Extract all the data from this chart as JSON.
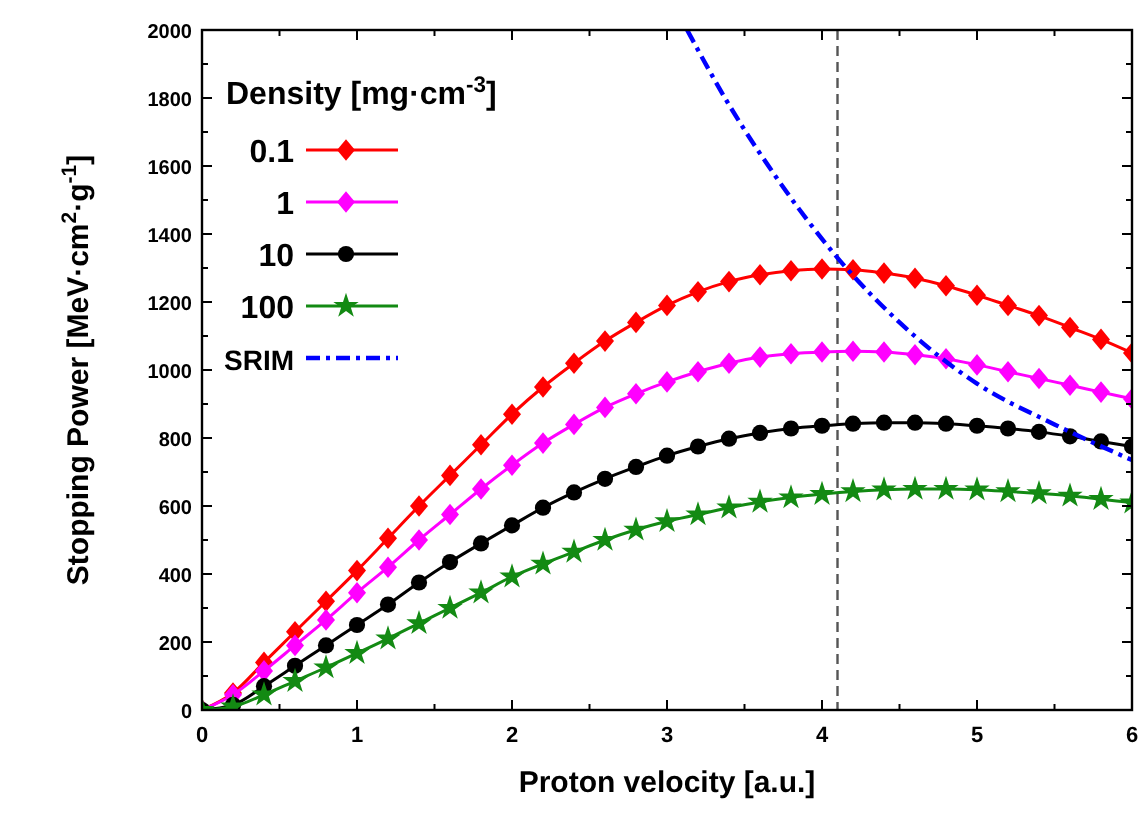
{
  "chart_data": {
    "type": "line",
    "xlabel": "Proton velocity [a.u.]",
    "ylabel": "Stopping Power [MeV·cm$^{2}$·g$^{-1}$]",
    "legend_title": "Density [mg·cm$^{-3}$]",
    "legend": "top left",
    "xlim": [
      0,
      6
    ],
    "xticks": [
      0,
      1,
      2,
      3,
      4,
      5,
      6
    ],
    "ylim": [
      0,
      2000
    ],
    "yticks": [
      0,
      200,
      400,
      600,
      800,
      1000,
      1200,
      1400,
      1600,
      1800,
      2000
    ],
    "x": [
      0,
      0.2,
      0.4,
      0.6,
      0.8,
      1,
      1.2,
      1.4,
      1.6,
      1.8,
      2,
      2.2,
      2.4,
      2.6,
      2.8,
      3,
      3.2,
      3.4,
      3.6,
      3.8,
      4,
      4.2,
      4.4,
      4.6,
      4.8,
      5,
      5.2,
      5.4,
      5.6,
      5.8,
      6
    ],
    "series": [
      {
        "name": "0.1",
        "color": "#ff0000",
        "marker": "diamond",
        "values": [
          0,
          50,
          140,
          230,
          320,
          410,
          505,
          600,
          690,
          780,
          870,
          950,
          1020,
          1085,
          1140,
          1190,
          1230,
          1260,
          1280,
          1292,
          1297,
          1295,
          1285,
          1270,
          1248,
          1220,
          1190,
          1160,
          1125,
          1090,
          1050
        ]
      },
      {
        "name": "1",
        "color": "#ff00ff",
        "marker": "diamond",
        "values": [
          0,
          45,
          115,
          190,
          265,
          345,
          420,
          500,
          575,
          650,
          720,
          785,
          840,
          890,
          930,
          965,
          995,
          1020,
          1038,
          1048,
          1053,
          1055,
          1053,
          1045,
          1033,
          1015,
          995,
          975,
          955,
          935,
          915
        ]
      },
      {
        "name": "10",
        "color": "#000000",
        "marker": "circle",
        "values": [
          0,
          15,
          70,
          130,
          190,
          250,
          310,
          375,
          435,
          490,
          543,
          595,
          640,
          680,
          715,
          748,
          775,
          798,
          815,
          828,
          836,
          842,
          845,
          845,
          842,
          836,
          828,
          818,
          805,
          790,
          775
        ]
      },
      {
        "name": "100",
        "color": "#138a13",
        "marker": "star",
        "values": [
          0,
          10,
          45,
          85,
          125,
          167,
          210,
          255,
          300,
          345,
          392,
          430,
          465,
          500,
          530,
          555,
          575,
          595,
          612,
          625,
          635,
          643,
          648,
          650,
          650,
          648,
          643,
          637,
          630,
          620,
          610
        ]
      },
      {
        "name": "SRIM",
        "color": "#0000ff",
        "marker": "none",
        "line_style": "dashdot",
        "x": [
          3.13,
          3.4,
          3.7,
          4.1,
          4.5,
          5,
          5.5,
          6
        ],
        "values": [
          2000,
          1780,
          1570,
          1330,
          1140,
          960,
          840,
          735
        ]
      }
    ],
    "ref_lines": [
      {
        "axis": "x",
        "value": 4.1,
        "color": "#555555",
        "line_style": "dashed"
      }
    ]
  }
}
